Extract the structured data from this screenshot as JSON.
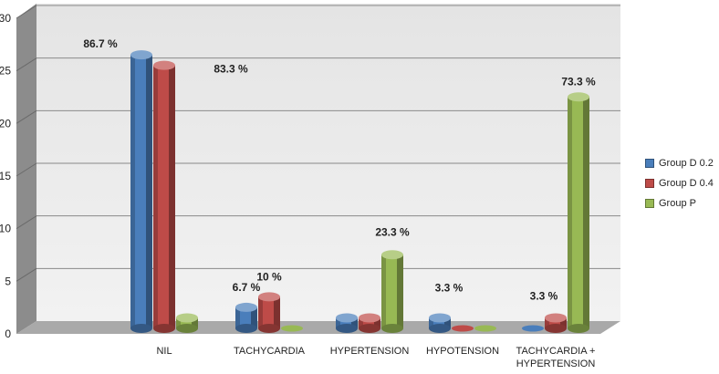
{
  "chart_data": {
    "type": "bar",
    "categories": [
      "NIL",
      "TACHYCARDIA",
      "HYPERTENSION",
      "HYPOTENSION",
      "TACHYCARDIA +\nHYPERTENSION"
    ],
    "series": [
      {
        "name": "Group D 0.2",
        "color": "#4a7ebb",
        "values": [
          26,
          2,
          1,
          1,
          0
        ]
      },
      {
        "name": "Group D 0.4",
        "color": "#be4b48",
        "values": [
          25,
          3,
          1,
          0,
          1
        ]
      },
      {
        "name": "Group P",
        "color": "#98b954",
        "values": [
          1,
          0,
          7,
          0,
          22
        ]
      }
    ],
    "ylim": [
      0,
      30
    ],
    "yticks": [
      0,
      5,
      10,
      15,
      20,
      25,
      30
    ],
    "grid": true,
    "legend_position": "right",
    "annotations": [
      {
        "text": "86.7 %",
        "category": 0,
        "series": 0
      },
      {
        "text": "83.3 %",
        "category": 0,
        "series": 1
      },
      {
        "text": "6.7 %",
        "category": 1,
        "series": 0
      },
      {
        "text": "10 %",
        "category": 1,
        "series": 1
      },
      {
        "text": "23.3 %",
        "category": 2,
        "series": 2
      },
      {
        "text": "3.3 %",
        "category": 3,
        "series": 0
      },
      {
        "text": "3.3 %",
        "category": 4,
        "series": 1
      },
      {
        "text": "73.3 %",
        "category": 4,
        "series": 2
      }
    ]
  }
}
